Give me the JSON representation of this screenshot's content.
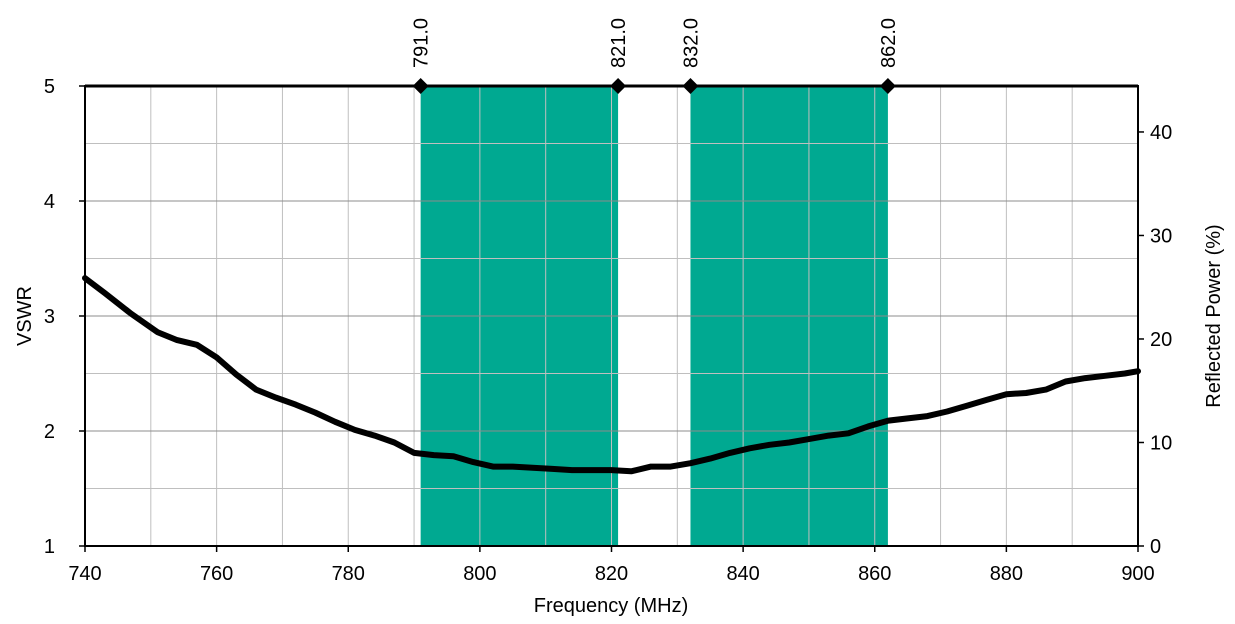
{
  "chart_data": {
    "type": "line",
    "title": "",
    "xlabel": "Frequency (MHz)",
    "ylabel": "VSWR",
    "y2label": "Reflected Power (%)",
    "xlim": [
      740,
      900
    ],
    "ylim": [
      1,
      5
    ],
    "y2lim": [
      0,
      44.44
    ],
    "x_ticks": [
      "740",
      "760",
      "780",
      "800",
      "820",
      "840",
      "860",
      "880",
      "900"
    ],
    "y_ticks": [
      "1",
      "2",
      "3",
      "4",
      "5"
    ],
    "y2_ticks": [
      "0",
      "10",
      "20",
      "30",
      "40"
    ],
    "grid": true,
    "bands": [
      {
        "from": 791,
        "to": 821,
        "from_label": "791.0",
        "to_label": "821.0",
        "color": "#00a991"
      },
      {
        "from": 832,
        "to": 862,
        "from_label": "832.0",
        "to_label": "862.0",
        "color": "#00a991"
      }
    ],
    "series": [
      {
        "color": "#000000",
        "x": [
          740,
          743,
          747,
          751,
          754,
          757,
          760,
          763,
          766,
          769,
          772,
          775,
          778,
          781,
          784,
          787,
          790,
          793,
          796,
          799,
          802,
          805,
          808,
          811,
          814,
          817,
          820,
          823,
          826,
          829,
          832,
          835,
          838,
          841,
          844,
          847,
          850,
          853,
          856,
          859,
          862,
          865,
          868,
          871,
          874,
          877,
          880,
          883,
          886,
          889,
          892,
          895,
          898,
          900
        ],
        "y": [
          3.33,
          3.2,
          3.02,
          2.86,
          2.79,
          2.75,
          2.64,
          2.49,
          2.36,
          2.29,
          2.23,
          2.16,
          2.08,
          2.01,
          1.96,
          1.9,
          1.81,
          1.79,
          1.78,
          1.73,
          1.69,
          1.69,
          1.68,
          1.67,
          1.66,
          1.66,
          1.66,
          1.65,
          1.69,
          1.69,
          1.72,
          1.76,
          1.81,
          1.85,
          1.88,
          1.9,
          1.93,
          1.96,
          1.98,
          2.04,
          2.09,
          2.11,
          2.13,
          2.17,
          2.22,
          2.27,
          2.32,
          2.33,
          2.36,
          2.43,
          2.46,
          2.48,
          2.5,
          2.52
        ]
      }
    ]
  }
}
